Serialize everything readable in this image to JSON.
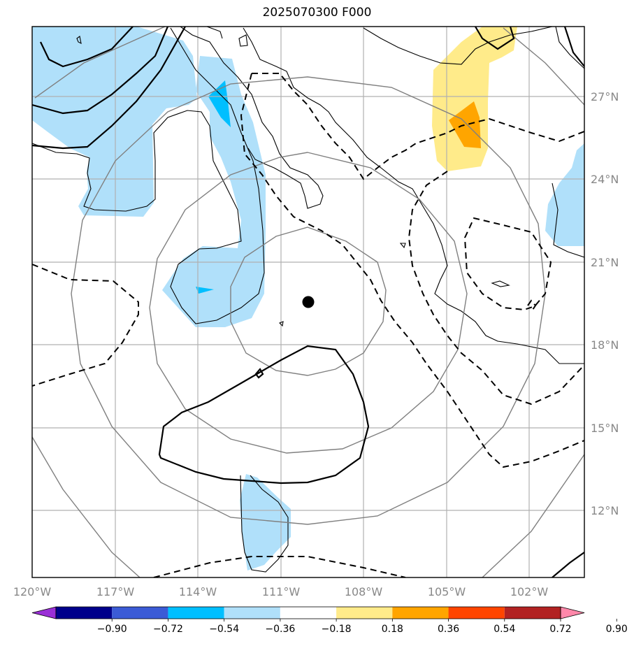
{
  "title": "2025070300 F000",
  "longitude_ticks": [
    "120°W",
    "117°W",
    "114°W",
    "111°W",
    "108°W",
    "105°W",
    "102°W"
  ],
  "latitude_ticks": [
    "27°N",
    "24°N",
    "21°N",
    "18°N",
    "15°N",
    "12°N"
  ],
  "extent": {
    "lon_min": -120,
    "lon_max": -100,
    "lat_min": 9.8,
    "lat_max": 29.7
  },
  "center_marker": {
    "lon": -110.2,
    "lat": 19.5
  },
  "colorbar": {
    "levels": [
      "−0.90",
      "−0.72",
      "−0.54",
      "−0.36",
      "−0.18",
      "0.18",
      "0.36",
      "0.54",
      "0.72",
      "0.90"
    ],
    "colors": [
      "#9a2fd6",
      "#00008b",
      "#3b5bd6",
      "#00bfff",
      "#b0e0fa",
      "#ffffff",
      "#ffeb8a",
      "#ffa500",
      "#ff4500",
      "#b22222",
      "#ff88aa"
    ]
  },
  "colors": {
    "contour_solid": "#000000",
    "contour_dashed": "#000000",
    "range_rings": "#808080",
    "gridlines": "#b0b0b0",
    "coastline": "#000000"
  }
}
